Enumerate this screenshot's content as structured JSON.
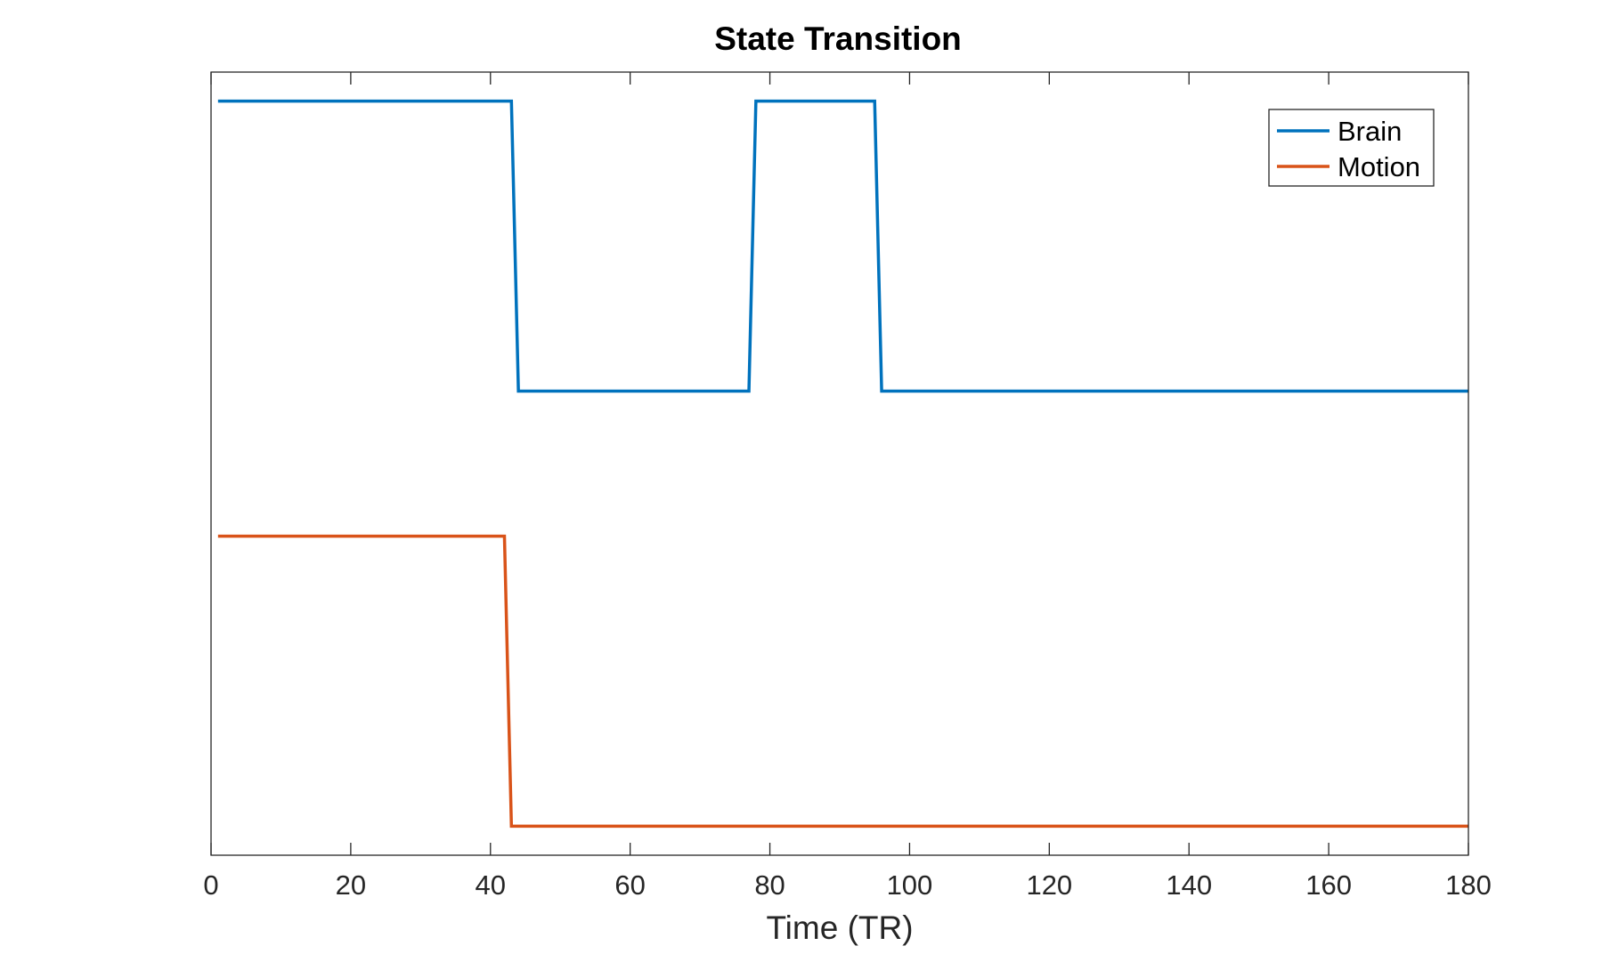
{
  "chart_data": {
    "type": "line",
    "title": "State Transition",
    "xlabel": "Time (TR)",
    "ylabel": "",
    "xlim": [
      0,
      180
    ],
    "ylim": [
      0.5,
      5.9
    ],
    "xticks": [
      0,
      20,
      40,
      60,
      80,
      100,
      120,
      140,
      160,
      180
    ],
    "xtick_labels": [
      "0",
      "20",
      "40",
      "60",
      "80",
      "100",
      "120",
      "140",
      "160",
      "180"
    ],
    "yticks_visible": false,
    "grid": false,
    "legend_position": "top-right",
    "series": [
      {
        "name": "Brain",
        "color": "#0072BD",
        "x": [
          1,
          43,
          44,
          77,
          78,
          95,
          96,
          180
        ],
        "y": [
          5.7,
          5.7,
          3.7,
          3.7,
          5.7,
          5.7,
          3.7,
          3.7
        ]
      },
      {
        "name": "Motion",
        "color": "#D95319",
        "x": [
          1,
          42,
          43,
          180
        ],
        "y": [
          2.7,
          2.7,
          0.7,
          0.7
        ]
      }
    ]
  }
}
